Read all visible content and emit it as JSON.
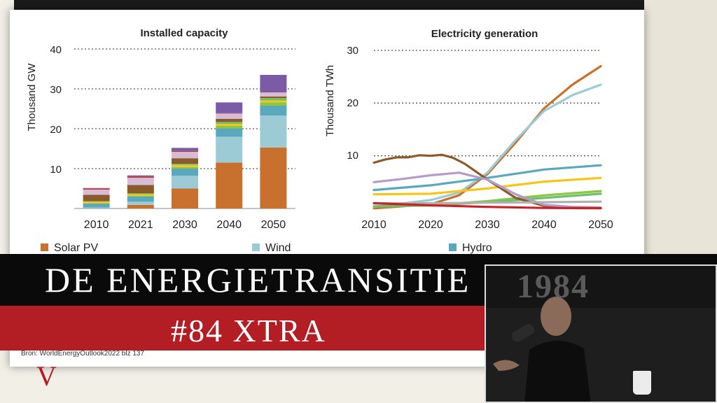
{
  "banner": {
    "title": "DE ENERGIETRANSITIE",
    "episode": "#84 XTRA"
  },
  "source_note": "Bron: WorldEnergyOutlook2022 blz 137",
  "logo_letter": "V",
  "video": {
    "wall_text": "1984"
  },
  "colors": {
    "solar": "#c8712e",
    "wind": "#9ccbd5",
    "hydro": "#5aa8be",
    "red_band": "#b31d24",
    "black_band": "#0a0a0a"
  },
  "legend": [
    {
      "label": "Solar PV",
      "color": "#c8712e"
    },
    {
      "label": "Wind",
      "color": "#9ccbd5"
    },
    {
      "label": "Hydro",
      "color": "#5aa8be"
    }
  ],
  "chart_data": [
    {
      "type": "bar",
      "title": "Installed capacity",
      "ylabel": "Thousand GW",
      "xlabel": "",
      "ylim": [
        0,
        40
      ],
      "yticks": [
        10,
        20,
        30,
        40
      ],
      "grid": "dotted horizontal",
      "categories": [
        "2010",
        "2021",
        "2030",
        "2040",
        "2050"
      ],
      "stacked": true,
      "series": [
        {
          "color": "#c8712e",
          "values": [
            0.04,
            0.9,
            5.0,
            11.5,
            15.3
          ]
        },
        {
          "color": "#9ccbd5",
          "values": [
            0.2,
            0.8,
            3.2,
            6.5,
            8.0
          ]
        },
        {
          "color": "#5aa8be",
          "values": [
            1.0,
            1.3,
            1.8,
            2.1,
            2.5
          ]
        },
        {
          "color": "#8dc63f",
          "values": [
            0.1,
            0.2,
            0.4,
            0.6,
            0.8
          ]
        },
        {
          "color": "#f5c518",
          "values": [
            0.4,
            0.4,
            0.5,
            0.5,
            0.5
          ]
        },
        {
          "color": "#6fbf6f",
          "values": [
            0.1,
            0.2,
            0.3,
            0.5,
            0.6
          ]
        },
        {
          "color": "#8a5a2b",
          "values": [
            1.6,
            2.1,
            1.4,
            0.8,
            0.4
          ]
        },
        {
          "color": "#d7bcd8",
          "values": [
            1.3,
            1.8,
            1.6,
            1.3,
            1.0
          ]
        },
        {
          "color": "#c0392b",
          "values": [
            0.3,
            0.3,
            0.2,
            0.1,
            0.1
          ]
        },
        {
          "color": "#7b5aa6",
          "values": [
            0.1,
            0.3,
            0.8,
            2.7,
            4.3
          ]
        }
      ]
    },
    {
      "type": "line",
      "title": "Electricity generation",
      "ylabel": "Thousand TWh",
      "xlabel": "",
      "ylim": [
        0,
        30
      ],
      "xlim": [
        2010,
        2050
      ],
      "yticks": [
        10,
        20,
        30
      ],
      "xticks": [
        2010,
        2020,
        2030,
        2040,
        2050
      ],
      "grid": "dotted horizontal",
      "series": [
        {
          "color": "#c8712e",
          "x": [
            2010,
            2020,
            2025,
            2030,
            2035,
            2040,
            2045,
            2050
          ],
          "y": [
            0.03,
            0.8,
            2.5,
            6.5,
            12.5,
            19.0,
            23.5,
            27.0
          ]
        },
        {
          "color": "#9ccbd5",
          "x": [
            2010,
            2020,
            2025,
            2030,
            2035,
            2040,
            2045,
            2050
          ],
          "y": [
            0.3,
            1.6,
            3.0,
            6.8,
            13.0,
            18.5,
            21.5,
            23.5
          ]
        },
        {
          "color": "#5aa8be",
          "x": [
            2010,
            2020,
            2030,
            2040,
            2050
          ],
          "y": [
            3.5,
            4.4,
            5.8,
            7.4,
            8.2
          ]
        },
        {
          "color": "#f5c518",
          "x": [
            2010,
            2020,
            2030,
            2040,
            2050
          ],
          "y": [
            2.7,
            2.8,
            3.8,
            5.1,
            5.8
          ]
        },
        {
          "color": "#8dc63f",
          "x": [
            2010,
            2020,
            2030,
            2040,
            2050
          ],
          "y": [
            0.4,
            0.6,
            1.4,
            2.5,
            3.3
          ]
        },
        {
          "color": "#6fbf6f",
          "x": [
            2010,
            2020,
            2030,
            2040,
            2050
          ],
          "y": [
            0.4,
            0.6,
            1.2,
            2.0,
            2.8
          ]
        },
        {
          "color": "#8a5a2b",
          "x": [
            2010,
            2012,
            2014,
            2016,
            2018,
            2020,
            2022,
            2024,
            2026,
            2028,
            2030,
            2035,
            2040,
            2045,
            2050
          ],
          "y": [
            8.7,
            9.3,
            9.7,
            9.7,
            10.1,
            10.0,
            10.2,
            9.6,
            8.5,
            7.0,
            5.5,
            2.0,
            0.5,
            0.2,
            0.1
          ]
        },
        {
          "color": "#b49bc9",
          "x": [
            2010,
            2015,
            2020,
            2025,
            2030,
            2035,
            2040,
            2045,
            2050
          ],
          "y": [
            5.0,
            5.6,
            6.3,
            6.8,
            5.5,
            2.7,
            0.7,
            0.3,
            0.2
          ]
        },
        {
          "color": "#b0b0b0",
          "x": [
            2010,
            2020,
            2030,
            2040,
            2050
          ],
          "y": [
            1.0,
            1.0,
            1.1,
            1.2,
            1.3
          ]
        },
        {
          "color": "#cc2027",
          "x": [
            2010,
            2015,
            2020,
            2030,
            2040,
            2050
          ],
          "y": [
            1.0,
            0.8,
            0.6,
            0.3,
            0.1,
            0.05
          ]
        }
      ]
    }
  ]
}
